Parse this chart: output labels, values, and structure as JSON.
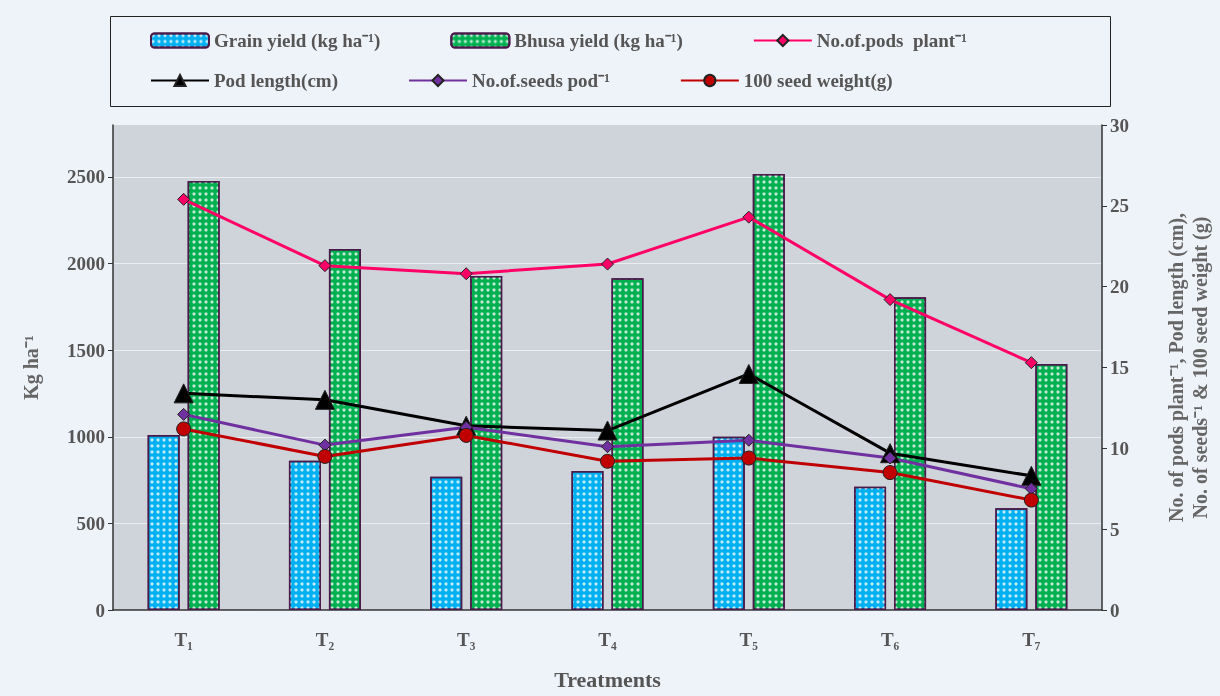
{
  "chart_data": {
    "type": "bar",
    "categories": [
      "T₁",
      "T₂",
      "T₃",
      "T₄",
      "T₅",
      "T₆",
      "T₇"
    ],
    "xlabel": "Treatments",
    "ylabel": "Kg ha⁻¹",
    "y2label": "No. of pods plant⁻¹, Pod length (cm),\nNo. of seeds⁻¹ & 100 seed weight (g)",
    "ylim": [
      0,
      2800
    ],
    "yticks": [
      0,
      500,
      1000,
      1500,
      2000,
      2500
    ],
    "y2lim": [
      0,
      30
    ],
    "y2ticks": [
      0,
      5,
      10,
      15,
      20,
      25,
      30
    ],
    "grid": "y",
    "legend": "top",
    "series": [
      {
        "name": "Grain yield (kg ha⁻¹)",
        "color": "#00b0f0",
        "values": [
          1010,
          862,
          770,
          802,
          1000,
          712,
          587
        ]
      },
      {
        "name": "Bhusa yield (kg ha⁻¹)",
        "color": "#00b050",
        "values": [
          2477,
          2084,
          1928,
          1915,
          2517,
          1805,
          1420
        ]
      },
      {
        "name": "No.of.pods  plant⁻¹",
        "type": "line",
        "axis": "y2",
        "marker": "diamond",
        "color": "#ff0066",
        "values": [
          25.4,
          21.3,
          20.8,
          21.4,
          24.3,
          19.2,
          15.3
        ]
      },
      {
        "name": "Pod length(cm)",
        "type": "line",
        "axis": "y2",
        "marker": "triangle",
        "color": "#000000",
        "values": [
          13.4,
          13.0,
          11.4,
          11.1,
          14.6,
          9.7,
          8.3
        ]
      },
      {
        "name": "No.of.seeds pod⁻¹",
        "type": "line",
        "axis": "y2",
        "marker": "diamond",
        "color": "#7030a0",
        "values": [
          12.1,
          10.2,
          11.3,
          10.1,
          10.5,
          9.4,
          7.5
        ]
      },
      {
        "name": "100 seed weight(g)",
        "type": "line",
        "axis": "y2",
        "marker": "circle",
        "color": "#c00000",
        "values": [
          11.2,
          9.5,
          10.8,
          9.2,
          9.4,
          8.5,
          6.8
        ]
      }
    ]
  }
}
